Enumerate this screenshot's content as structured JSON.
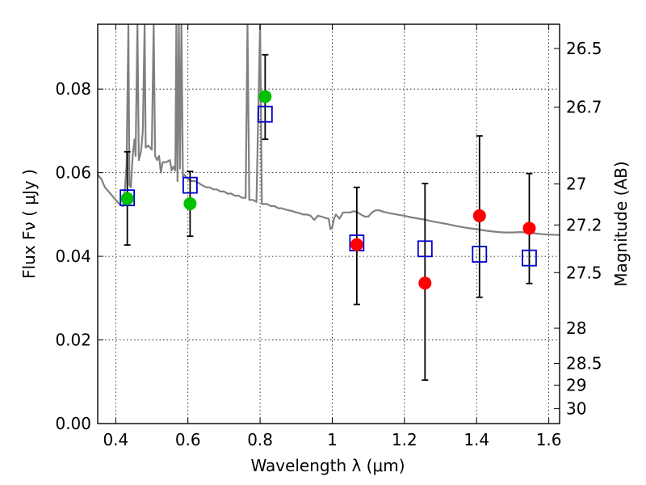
{
  "chart_data": {
    "type": "scatter",
    "xlabel": "Wavelength  λ (μm)",
    "ylabel": "Flux  Fν  ( μJy )",
    "ylabel_right": "Magnitude (AB)",
    "xlim": [
      0.35,
      1.63
    ],
    "ylim": [
      0.0,
      0.0955
    ],
    "x_ticks": [
      0.4,
      0.6,
      0.8,
      1.0,
      1.2,
      1.4,
      1.6
    ],
    "x_tick_labels": [
      "0.4",
      "0.6",
      "0.8",
      "1",
      "1.2",
      "1.4",
      "1.6"
    ],
    "y_ticks": [
      0.0,
      0.02,
      0.04,
      0.06,
      0.08
    ],
    "y_tick_labels": [
      "0.00",
      "0.02",
      "0.04",
      "0.06",
      "0.08"
    ],
    "right_ticks": [
      {
        "flux": 0.0897,
        "label": "26.5"
      },
      {
        "flux": 0.0757,
        "label": "26.7"
      },
      {
        "flux": 0.0573,
        "label": "27"
      },
      {
        "flux": 0.0475,
        "label": "27.2"
      },
      {
        "flux": 0.0361,
        "label": "27.5"
      },
      {
        "flux": 0.0228,
        "label": "28"
      },
      {
        "flux": 0.0144,
        "label": "28.5"
      },
      {
        "flux": 0.0092,
        "label": "29"
      },
      {
        "flux": 0.0036,
        "label": "30"
      }
    ],
    "grid": true,
    "colors": {
      "sed": "#808080",
      "green_points": "#00c000",
      "red_points": "#ff0000",
      "model_squares": "#0000cc",
      "errorbars": "#000000"
    },
    "series": [
      {
        "kind": "line",
        "color_key": "sed",
        "points": [
          [
            0.35,
            0.0595
          ],
          [
            0.36,
            0.0585
          ],
          [
            0.37,
            0.0565
          ],
          [
            0.38,
            0.0555
          ],
          [
            0.39,
            0.0545
          ],
          [
            0.4,
            0.0535
          ],
          [
            0.41,
            0.0525
          ],
          [
            0.42,
            0.052
          ],
          [
            0.425,
            0.0555
          ],
          [
            0.43,
            0.062
          ],
          [
            0.435,
            0.0955
          ],
          [
            0.438,
            0.057
          ],
          [
            0.442,
            0.0565
          ],
          [
            0.447,
            0.064
          ],
          [
            0.452,
            0.068
          ],
          [
            0.455,
            0.064
          ],
          [
            0.46,
            0.0955
          ],
          [
            0.464,
            0.063
          ],
          [
            0.47,
            0.065
          ],
          [
            0.475,
            0.07
          ],
          [
            0.48,
            0.0955
          ],
          [
            0.483,
            0.066
          ],
          [
            0.49,
            0.0665
          ],
          [
            0.5,
            0.0655
          ],
          [
            0.505,
            0.0955
          ],
          [
            0.509,
            0.064
          ],
          [
            0.515,
            0.063
          ],
          [
            0.52,
            0.064
          ],
          [
            0.525,
            0.06
          ],
          [
            0.53,
            0.0625
          ],
          [
            0.54,
            0.0625
          ],
          [
            0.55,
            0.063
          ],
          [
            0.555,
            0.0605
          ],
          [
            0.56,
            0.0615
          ],
          [
            0.565,
            0.0605
          ],
          [
            0.568,
            0.0955
          ],
          [
            0.571,
            0.058
          ],
          [
            0.575,
            0.0955
          ],
          [
            0.578,
            0.061
          ],
          [
            0.582,
            0.0955
          ],
          [
            0.586,
            0.059
          ],
          [
            0.59,
            0.0595
          ],
          [
            0.6,
            0.0585
          ],
          [
            0.61,
            0.058
          ],
          [
            0.62,
            0.058
          ],
          [
            0.63,
            0.0575
          ],
          [
            0.64,
            0.057
          ],
          [
            0.65,
            0.0565
          ],
          [
            0.66,
            0.0565
          ],
          [
            0.67,
            0.056
          ],
          [
            0.68,
            0.056
          ],
          [
            0.69,
            0.0555
          ],
          [
            0.7,
            0.0555
          ],
          [
            0.71,
            0.055
          ],
          [
            0.72,
            0.055
          ],
          [
            0.73,
            0.0545
          ],
          [
            0.74,
            0.0545
          ],
          [
            0.75,
            0.054
          ],
          [
            0.76,
            0.054
          ],
          [
            0.765,
            0.0955
          ],
          [
            0.77,
            0.0535
          ],
          [
            0.78,
            0.0535
          ],
          [
            0.79,
            0.053
          ],
          [
            0.8,
            0.0955
          ],
          [
            0.805,
            0.0525
          ],
          [
            0.81,
            0.0525
          ],
          [
            0.82,
            0.0525
          ],
          [
            0.83,
            0.052
          ],
          [
            0.84,
            0.052
          ],
          [
            0.85,
            0.0515
          ],
          [
            0.86,
            0.0515
          ],
          [
            0.87,
            0.0512
          ],
          [
            0.88,
            0.051
          ],
          [
            0.89,
            0.0508
          ],
          [
            0.9,
            0.0505
          ],
          [
            0.91,
            0.0503
          ],
          [
            0.92,
            0.05
          ],
          [
            0.93,
            0.05
          ],
          [
            0.94,
            0.0497
          ],
          [
            0.95,
            0.0487
          ],
          [
            0.96,
            0.0497
          ],
          [
            0.97,
            0.0495
          ],
          [
            0.98,
            0.0492
          ],
          [
            0.99,
            0.049
          ],
          [
            0.995,
            0.0465
          ],
          [
            1.0,
            0.047
          ],
          [
            1.005,
            0.049
          ],
          [
            1.01,
            0.05
          ],
          [
            1.015,
            0.0495
          ],
          [
            1.02,
            0.049
          ],
          [
            1.03,
            0.0505
          ],
          [
            1.04,
            0.0505
          ],
          [
            1.05,
            0.0505
          ],
          [
            1.06,
            0.0508
          ],
          [
            1.07,
            0.0505
          ],
          [
            1.08,
            0.05
          ],
          [
            1.09,
            0.0495
          ],
          [
            1.1,
            0.0495
          ],
          [
            1.11,
            0.0505
          ],
          [
            1.12,
            0.051
          ],
          [
            1.13,
            0.051
          ],
          [
            1.14,
            0.0507
          ],
          [
            1.15,
            0.0505
          ],
          [
            1.16,
            0.0503
          ],
          [
            1.18,
            0.05
          ],
          [
            1.2,
            0.0497
          ],
          [
            1.22,
            0.0493
          ],
          [
            1.24,
            0.049
          ],
          [
            1.26,
            0.0487
          ],
          [
            1.28,
            0.0483
          ],
          [
            1.3,
            0.048
          ],
          [
            1.32,
            0.0477
          ],
          [
            1.34,
            0.0473
          ],
          [
            1.36,
            0.047
          ],
          [
            1.38,
            0.0467
          ],
          [
            1.4,
            0.0465
          ],
          [
            1.42,
            0.0462
          ],
          [
            1.44,
            0.046
          ],
          [
            1.46,
            0.0458
          ],
          [
            1.48,
            0.0457
          ],
          [
            1.5,
            0.0457
          ],
          [
            1.52,
            0.0458
          ],
          [
            1.54,
            0.0457
          ],
          [
            1.56,
            0.0455
          ],
          [
            1.58,
            0.0453
          ],
          [
            1.6,
            0.0452
          ],
          [
            1.63,
            0.0451
          ]
        ]
      },
      {
        "kind": "errorbars",
        "color_key": "errorbars",
        "points": [
          {
            "x": 0.432,
            "y": 0.0538,
            "lo": 0.0427,
            "hi": 0.065
          },
          {
            "x": 0.606,
            "y": 0.0526,
            "lo": 0.0448,
            "hi": 0.0603
          },
          {
            "x": 0.814,
            "y": 0.0782,
            "lo": 0.068,
            "hi": 0.0882
          },
          {
            "x": 1.068,
            "y": 0.0428,
            "lo": 0.0285,
            "hi": 0.0565
          },
          {
            "x": 1.257,
            "y": 0.0336,
            "lo": 0.0104,
            "hi": 0.0574
          },
          {
            "x": 1.408,
            "y": 0.0497,
            "lo": 0.0302,
            "hi": 0.0688
          },
          {
            "x": 1.546,
            "y": 0.0467,
            "lo": 0.0335,
            "hi": 0.0598
          }
        ]
      },
      {
        "kind": "squares",
        "color_key": "model_squares",
        "points": [
          [
            0.432,
            0.054
          ],
          [
            0.606,
            0.057
          ],
          [
            0.814,
            0.074
          ],
          [
            1.068,
            0.0432
          ],
          [
            1.257,
            0.0418
          ],
          [
            1.408,
            0.0405
          ],
          [
            1.546,
            0.0396
          ]
        ]
      },
      {
        "kind": "dots",
        "color_key": "green_points",
        "points": [
          [
            0.432,
            0.0538
          ],
          [
            0.606,
            0.0526
          ],
          [
            0.814,
            0.0782
          ]
        ]
      },
      {
        "kind": "dots",
        "color_key": "red_points",
        "points": [
          [
            1.068,
            0.0428
          ],
          [
            1.257,
            0.0336
          ],
          [
            1.408,
            0.0497
          ],
          [
            1.546,
            0.0467
          ]
        ]
      }
    ]
  }
}
